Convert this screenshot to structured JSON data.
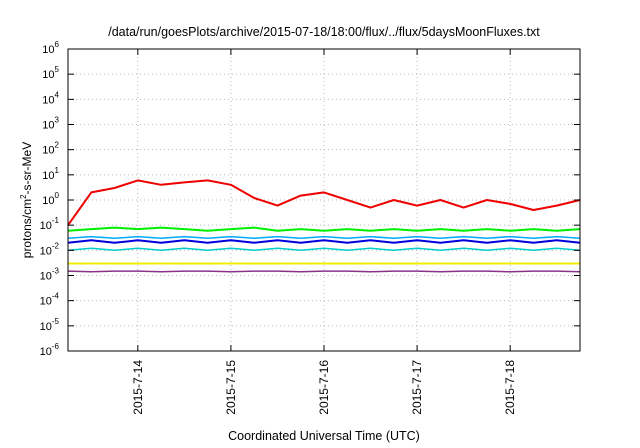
{
  "chart_data": {
    "type": "line",
    "title": "/data/run/goesPlots/archive/2015-07-18/18:00/flux/../flux/5daysMoonFluxes.txt",
    "xlabel": "Coordinated Universal Time (UTC)",
    "ylabel": "protons/cm2-s-sr-MeV",
    "ylabel_parts": {
      "pre": "protons/cm",
      "sup": "2",
      "post": "-s-sr-MeV"
    },
    "x_start": "2015-07-13 06:00",
    "x_end": "2015-07-18 18:00",
    "x_ticks": [
      "2015-7-14",
      "2015-7-15",
      "2015-7-16",
      "2015-7-17",
      "2015-7-18"
    ],
    "yscale": "log",
    "ylim": [
      1e-06,
      1000000.0
    ],
    "y_ticks": [
      {
        "base": "10",
        "exp": "-6"
      },
      {
        "base": "10",
        "exp": "-5"
      },
      {
        "base": "10",
        "exp": "-4"
      },
      {
        "base": "10",
        "exp": "-3"
      },
      {
        "base": "10",
        "exp": "-2"
      },
      {
        "base": "10",
        "exp": "-1"
      },
      {
        "base": "10",
        "exp": "0"
      },
      {
        "base": "10",
        "exp": "1"
      },
      {
        "base": "10",
        "exp": "2"
      },
      {
        "base": "10",
        "exp": "3"
      },
      {
        "base": "10",
        "exp": "4"
      },
      {
        "base": "10",
        "exp": "5"
      },
      {
        "base": "10",
        "exp": "6"
      }
    ],
    "grid": true,
    "x": [
      "2015-07-13 06:00",
      "2015-07-13 12:00",
      "2015-07-13 18:00",
      "2015-07-14 00:00",
      "2015-07-14 06:00",
      "2015-07-14 12:00",
      "2015-07-14 18:00",
      "2015-07-15 00:00",
      "2015-07-15 06:00",
      "2015-07-15 12:00",
      "2015-07-15 18:00",
      "2015-07-16 00:00",
      "2015-07-16 06:00",
      "2015-07-16 12:00",
      "2015-07-16 18:00",
      "2015-07-17 00:00",
      "2015-07-17 06:00",
      "2015-07-17 12:00",
      "2015-07-17 18:00",
      "2015-07-18 00:00",
      "2015-07-18 06:00",
      "2015-07-18 12:00",
      "2015-07-18 18:00"
    ],
    "series": [
      {
        "color": "#ee0000",
        "width": 2,
        "values": [
          0.1,
          2,
          3,
          6,
          4,
          5,
          6,
          4,
          1.2,
          0.6,
          1.5,
          2,
          1,
          0.5,
          1,
          0.6,
          1,
          0.5,
          1,
          0.7,
          0.4,
          0.6,
          1
        ]
      },
      {
        "color": "#00ee00",
        "width": 2,
        "values": [
          0.06,
          0.07,
          0.08,
          0.07,
          0.08,
          0.07,
          0.06,
          0.07,
          0.08,
          0.06,
          0.07,
          0.06,
          0.07,
          0.06,
          0.07,
          0.06,
          0.07,
          0.06,
          0.07,
          0.06,
          0.07,
          0.06,
          0.07
        ]
      },
      {
        "color": "#00aaff",
        "width": 1.5,
        "values": [
          0.03,
          0.035,
          0.03,
          0.035,
          0.03,
          0.035,
          0.03,
          0.035,
          0.03,
          0.035,
          0.03,
          0.035,
          0.03,
          0.035,
          0.03,
          0.035,
          0.03,
          0.035,
          0.03,
          0.035,
          0.03,
          0.035,
          0.03
        ]
      },
      {
        "color": "#0000dd",
        "width": 2,
        "values": [
          0.02,
          0.025,
          0.02,
          0.025,
          0.02,
          0.025,
          0.02,
          0.025,
          0.02,
          0.025,
          0.02,
          0.025,
          0.02,
          0.025,
          0.02,
          0.025,
          0.02,
          0.025,
          0.02,
          0.025,
          0.02,
          0.025,
          0.02
        ]
      },
      {
        "color": "#00cccc",
        "width": 1.5,
        "values": [
          0.01,
          0.012,
          0.01,
          0.012,
          0.01,
          0.012,
          0.01,
          0.012,
          0.01,
          0.012,
          0.01,
          0.012,
          0.01,
          0.012,
          0.01,
          0.012,
          0.01,
          0.012,
          0.01,
          0.012,
          0.01,
          0.012,
          0.01
        ]
      },
      {
        "color": "#eeee00",
        "width": 2,
        "values": [
          0.003,
          0.003,
          0.003,
          0.003,
          0.003,
          0.003,
          0.003,
          0.003,
          0.003,
          0.003,
          0.003,
          0.003,
          0.003,
          0.003,
          0.003,
          0.003,
          0.003,
          0.003,
          0.003,
          0.003,
          0.003,
          0.003,
          0.003
        ]
      },
      {
        "color": "#883388",
        "width": 1.5,
        "values": [
          0.0015,
          0.0014,
          0.0015,
          0.0015,
          0.0014,
          0.0015,
          0.0015,
          0.0014,
          0.0015,
          0.0015,
          0.0014,
          0.0015,
          0.0015,
          0.0014,
          0.0015,
          0.0015,
          0.0014,
          0.0015,
          0.0015,
          0.0014,
          0.0015,
          0.0015,
          0.0014
        ]
      }
    ]
  }
}
